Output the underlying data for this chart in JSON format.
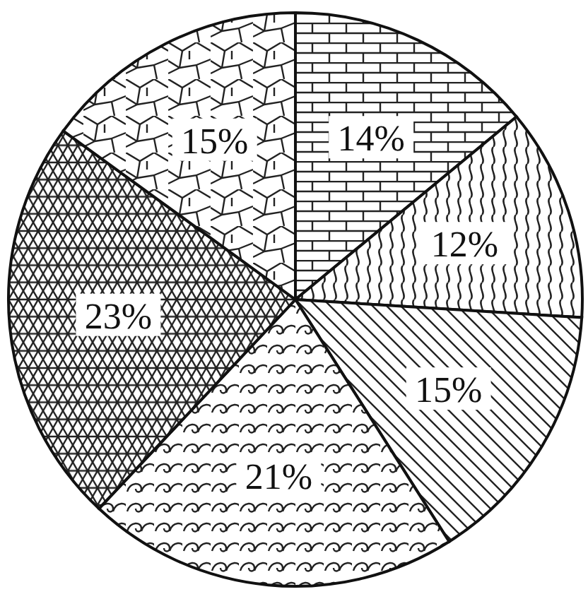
{
  "chart_data": {
    "type": "pie",
    "categories": [
      null,
      null,
      null,
      null,
      null,
      null
    ],
    "values": [
      14,
      12,
      15,
      21,
      23,
      15
    ],
    "value_labels": [
      "14%",
      "12%",
      "15%",
      "21%",
      "23%",
      "15%"
    ]
  }
}
